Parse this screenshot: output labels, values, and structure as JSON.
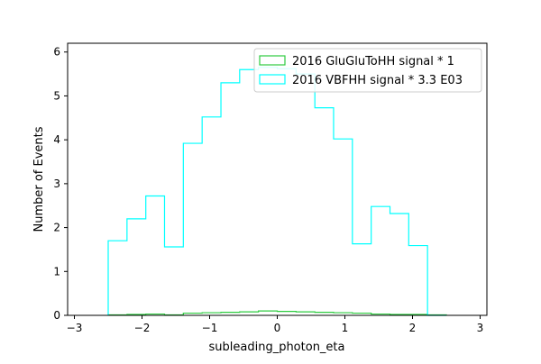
{
  "chart_data": {
    "type": "line",
    "style": "step-histogram",
    "xlabel": "subleading_photon_eta",
    "ylabel": "Number of Events",
    "xlim": [
      -3.1,
      3.1
    ],
    "ylim": [
      0,
      6.2
    ],
    "x_ticks": [
      -3,
      -2,
      -1,
      0,
      1,
      2,
      3
    ],
    "y_ticks": [
      0,
      1,
      2,
      3,
      4,
      5,
      6
    ],
    "bin_edges": [
      -2.5,
      -2.222,
      -1.944,
      -1.667,
      -1.389,
      -1.111,
      -0.833,
      -0.556,
      -0.278,
      0.0,
      0.278,
      0.556,
      0.833,
      1.111,
      1.389,
      1.667,
      1.944,
      2.222,
      2.5
    ],
    "grid": false,
    "legend_position": "top-right",
    "series": [
      {
        "name": "2016 GluGluToHH signal * 1",
        "color": "#2ecc40",
        "values": [
          0.01,
          0.02,
          0.03,
          0.01,
          0.05,
          0.06,
          0.07,
          0.08,
          0.1,
          0.09,
          0.08,
          0.07,
          0.06,
          0.05,
          0.03,
          0.02,
          0.02,
          0.01
        ]
      },
      {
        "name": "2016 VBFHH signal * 3.3 E03",
        "color": "#00ffff",
        "values": [
          1.7,
          2.2,
          2.72,
          1.56,
          3.92,
          4.52,
          5.3,
          5.6,
          5.65,
          5.62,
          5.5,
          4.73,
          4.02,
          1.63,
          2.48,
          2.32,
          1.59,
          0.0
        ]
      }
    ]
  }
}
